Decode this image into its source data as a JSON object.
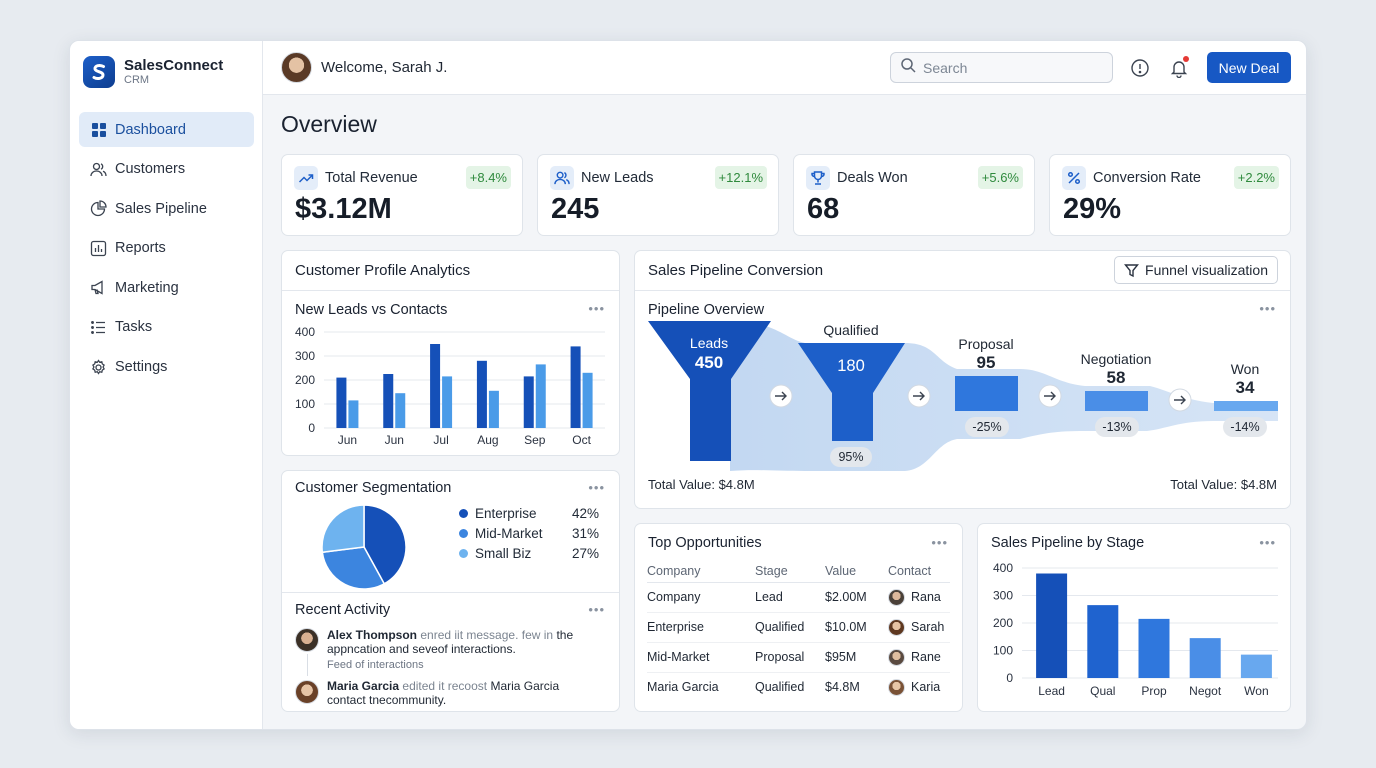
{
  "brand": {
    "name": "SalesConnect",
    "sub": "CRM",
    "logo_letter": "S"
  },
  "sidebar": {
    "items": [
      {
        "label": "Dashboard",
        "icon": "grid-icon",
        "active": true
      },
      {
        "label": "Customers",
        "icon": "users-icon"
      },
      {
        "label": "Sales Pipeline",
        "icon": "pie-icon"
      },
      {
        "label": "Reports",
        "icon": "bar-chart-icon"
      },
      {
        "label": "Marketing",
        "icon": "megaphone-icon"
      },
      {
        "label": "Tasks",
        "icon": "list-icon"
      },
      {
        "label": "Settings",
        "icon": "gear-icon"
      }
    ]
  },
  "header": {
    "welcome": "Welcome, Sarah J.",
    "search_placeholder": "Search",
    "new_deal": "New Deal",
    "icons": [
      "chat-icon",
      "bell-icon"
    ]
  },
  "page_title": "Overview",
  "kpis": [
    {
      "label": "Total Revenue",
      "value": "$3.12M",
      "delta": "+8.4%",
      "icon": "trend-up-icon"
    },
    {
      "label": "New Leads",
      "value": "245",
      "delta": "+12.1%",
      "icon": "users-icon"
    },
    {
      "label": "Deals Won",
      "value": "68",
      "delta": "+5.6%",
      "icon": "trophy-icon"
    },
    {
      "label": "Conversion Rate",
      "value": "29%",
      "delta": "+2.2%",
      "icon": "percent-icon"
    }
  ],
  "profile_analytics": {
    "title": "Customer Profile Analytics",
    "leads_chart_title": "New Leads vs Contacts",
    "segmentation_title": "Customer Segmentation",
    "segments": [
      {
        "label": "Enterprise",
        "pct": "42%",
        "color": "#1550b8"
      },
      {
        "label": "Mid-Market",
        "pct": "31%",
        "color": "#3c85df"
      },
      {
        "label": "Small Biz",
        "pct": "27%",
        "color": "#6eb3ef"
      }
    ],
    "recent_activity_title": "Recent Activity",
    "activity": [
      {
        "name": "Alex Thompson",
        "muted": "enred iit message. few in",
        "text": "the",
        "text2": "appncation and seveof interactions.",
        "sub": "Feed of interactions"
      },
      {
        "name": "Maria Garcia",
        "muted": "edited it recoost",
        "text": "Maria Garcia",
        "text2": "contact tnecommunity."
      }
    ]
  },
  "pipeline_conversion": {
    "title": "Sales Pipeline Conversion",
    "button": "Funnel visualization",
    "subtitle": "Pipeline Overview",
    "stages": [
      {
        "name": "Leads",
        "value": "450"
      },
      {
        "name": "Qualified",
        "value": "180",
        "rate": "95%"
      },
      {
        "name": "Proposal",
        "value": "95",
        "rate": "-25%"
      },
      {
        "name": "Negotiation",
        "value": "58",
        "rate": "-13%"
      },
      {
        "name": "Won",
        "value": "34",
        "rate": "-14%"
      }
    ],
    "total_left": "Total Value: $4.8M",
    "total_right": "Total Value: $4.8M"
  },
  "top_opportunities": {
    "title": "Top Opportunities",
    "columns": [
      "Company",
      "Stage",
      "Value",
      "Contact"
    ],
    "rows": [
      {
        "company": "Company",
        "stage": "Lead",
        "value": "$2.00M",
        "contact": "Rana"
      },
      {
        "company": "Enterprise",
        "stage": "Qualified",
        "value": "$10.0M",
        "contact": "Sarah"
      },
      {
        "company": "Mid-Market",
        "stage": "Proposal",
        "value": "$95M",
        "contact": "Rane"
      },
      {
        "company": "Maria Garcia",
        "stage": "Qualified",
        "value": "$4.8M",
        "contact": "Karia"
      }
    ]
  },
  "stage_chart_title": "Sales Pipeline by Stage",
  "chart_data": [
    {
      "type": "bar",
      "title": "New Leads vs Contacts",
      "categories": [
        "Jun",
        "Jun",
        "Jul",
        "Aug",
        "Sep",
        "Oct"
      ],
      "series": [
        {
          "values": [
            210,
            225,
            350,
            280,
            215,
            340
          ],
          "color": "#1550b8"
        },
        {
          "values": [
            115,
            145,
            215,
            155,
            265,
            230
          ],
          "color": "#4a9be8"
        }
      ],
      "ylim": [
        0,
        400
      ],
      "yticks": [
        0,
        100,
        200,
        300,
        400
      ],
      "grid": true
    },
    {
      "type": "pie",
      "title": "Customer Segmentation",
      "labels": [
        "Enterprise",
        "Mid-Market",
        "Small Biz"
      ],
      "values": [
        42,
        31,
        27
      ],
      "colors": [
        "#1550b8",
        "#3c85df",
        "#6eb3ef"
      ]
    },
    {
      "type": "bar",
      "title": "Sales Pipeline by Stage",
      "categories": [
        "Lead",
        "Qual",
        "Prop",
        "Negot",
        "Won"
      ],
      "values": [
        380,
        265,
        215,
        145,
        85
      ],
      "colors": [
        "#1550b8",
        "#1f63cf",
        "#2f77dd",
        "#4a8ee7",
        "#68a8ef"
      ],
      "ylim": [
        0,
        400
      ],
      "yticks": [
        0,
        100,
        200,
        300,
        400
      ],
      "grid": true
    }
  ]
}
